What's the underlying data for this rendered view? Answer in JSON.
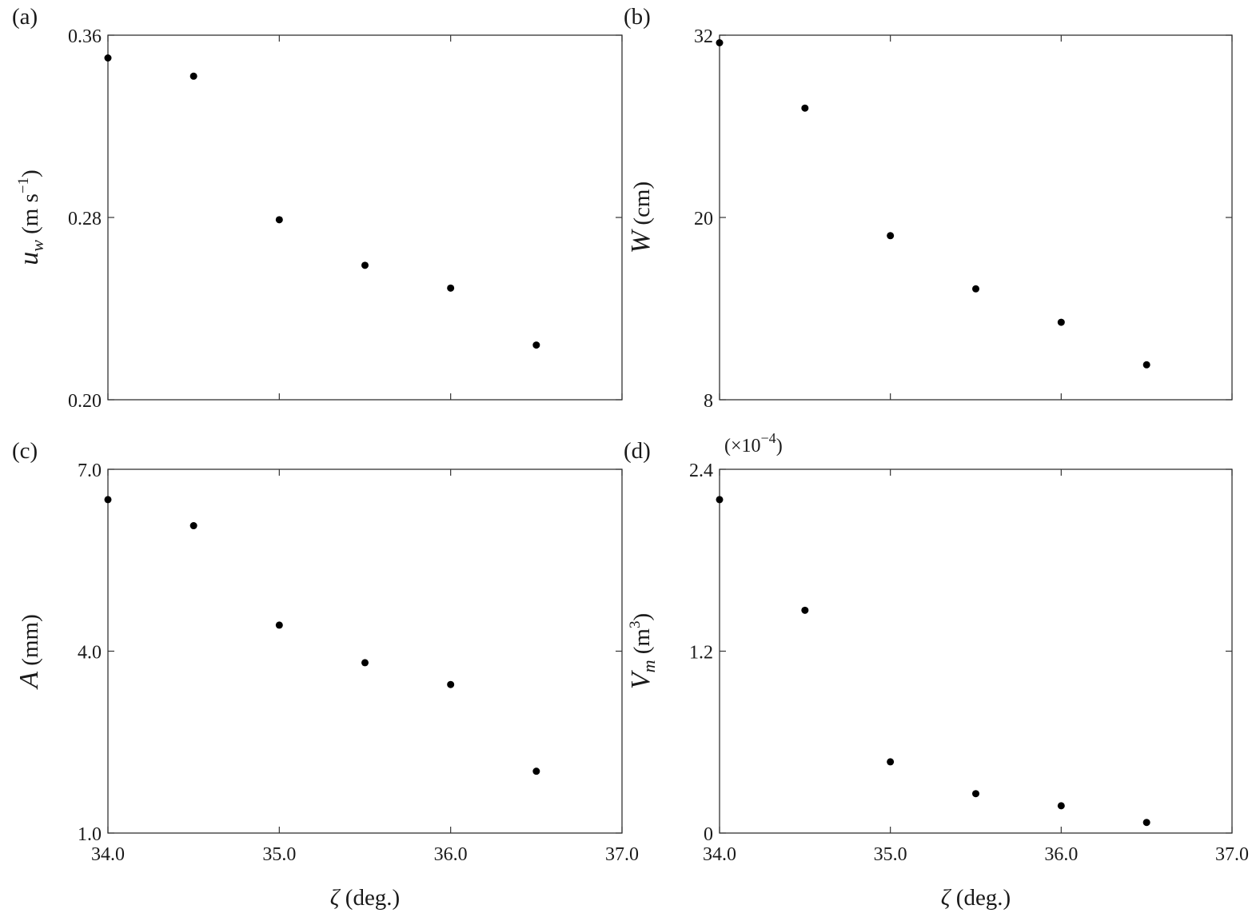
{
  "chart_data": [
    {
      "type": "scatter",
      "panel_label": "(a)",
      "xlabel": "",
      "ylabel_symbol": "u",
      "ylabel_sub": "w",
      "ylabel_unit": " (m s",
      "ylabel_unit_sup": "−1",
      "ylabel_unit_end": ")",
      "multiplier": "",
      "xlim": [
        34.0,
        37.0
      ],
      "ylim": [
        0.2,
        0.36
      ],
      "xticks": [
        34.0,
        35.0,
        36.0,
        37.0
      ],
      "xtick_labels": [
        "",
        "",
        "",
        ""
      ],
      "yticks": [
        0.2,
        0.28,
        0.36
      ],
      "ytick_labels": [
        "0.20",
        "0.28",
        "0.36"
      ],
      "x": [
        34.0,
        34.5,
        35.0,
        35.5,
        36.0,
        36.5
      ],
      "y": [
        0.35,
        0.342,
        0.279,
        0.259,
        0.249,
        0.224
      ],
      "grid": false
    },
    {
      "type": "scatter",
      "panel_label": "(b)",
      "xlabel": "",
      "ylabel_symbol": "W",
      "ylabel_sub": "",
      "ylabel_unit": " (cm)",
      "ylabel_unit_sup": "",
      "ylabel_unit_end": "",
      "multiplier": "",
      "xlim": [
        34.0,
        37.0
      ],
      "ylim": [
        8,
        32
      ],
      "xticks": [
        34.0,
        35.0,
        36.0,
        37.0
      ],
      "xtick_labels": [
        "",
        "",
        "",
        ""
      ],
      "yticks": [
        8,
        20,
        32
      ],
      "ytick_labels": [
        "8",
        "20",
        "32"
      ],
      "x": [
        34.0,
        34.5,
        35.0,
        35.5,
        36.0,
        36.5
      ],
      "y": [
        31.5,
        27.2,
        18.8,
        15.3,
        13.1,
        10.3
      ],
      "grid": false
    },
    {
      "type": "scatter",
      "panel_label": "(c)",
      "xlabel": "ζ (deg.)",
      "ylabel_symbol": "A",
      "ylabel_sub": "",
      "ylabel_unit": " (mm)",
      "ylabel_unit_sup": "",
      "ylabel_unit_end": "",
      "multiplier": "",
      "xlim": [
        34.0,
        37.0
      ],
      "ylim": [
        1.0,
        7.0
      ],
      "xticks": [
        34.0,
        35.0,
        36.0,
        37.0
      ],
      "xtick_labels": [
        "34.0",
        "35.0",
        "36.0",
        "37.0"
      ],
      "yticks": [
        1.0,
        4.0,
        7.0
      ],
      "ytick_labels": [
        "1.0",
        "4.0",
        "7.0"
      ],
      "x": [
        34.0,
        34.5,
        35.0,
        35.5,
        36.0,
        36.5
      ],
      "y": [
        6.5,
        6.07,
        4.43,
        3.81,
        3.45,
        2.02
      ],
      "grid": false
    },
    {
      "type": "scatter",
      "panel_label": "(d)",
      "xlabel": "ζ (deg.)",
      "ylabel_symbol": "V",
      "ylabel_sub": "m",
      "ylabel_unit": " (m",
      "ylabel_unit_sup": "3",
      "ylabel_unit_end": ")",
      "multiplier": "(×10",
      "multiplier_sup": "−4",
      "multiplier_end": ")",
      "xlim": [
        34.0,
        37.0
      ],
      "ylim": [
        0,
        2.4
      ],
      "xticks": [
        34.0,
        35.0,
        36.0,
        37.0
      ],
      "xtick_labels": [
        "34.0",
        "35.0",
        "36.0",
        "37.0"
      ],
      "yticks": [
        0,
        1.2,
        2.4
      ],
      "ytick_labels": [
        "0",
        "1.2",
        "2.4"
      ],
      "x": [
        34.0,
        34.5,
        35.0,
        35.5,
        36.0,
        36.5
      ],
      "y": [
        2.2,
        1.47,
        0.47,
        0.26,
        0.18,
        0.07
      ],
      "grid": false
    }
  ]
}
